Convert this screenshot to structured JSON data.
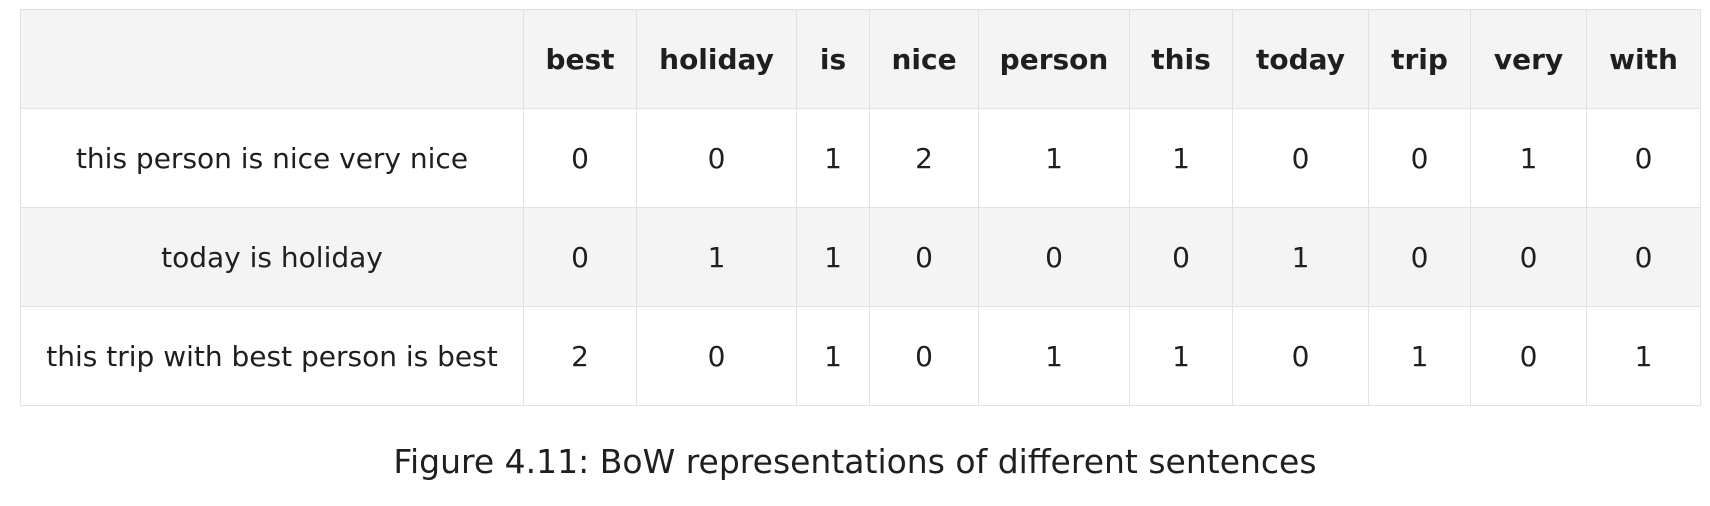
{
  "table": {
    "corner_label": "",
    "columns": [
      "best",
      "holiday",
      "is",
      "nice",
      "person",
      "this",
      "today",
      "trip",
      "very",
      "with"
    ],
    "rows": [
      {
        "sentence": "this person is nice very nice",
        "values": [
          "0",
          "0",
          "1",
          "2",
          "1",
          "1",
          "0",
          "0",
          "1",
          "0"
        ]
      },
      {
        "sentence": "today is holiday",
        "values": [
          "0",
          "1",
          "1",
          "0",
          "0",
          "0",
          "1",
          "0",
          "0",
          "0"
        ]
      },
      {
        "sentence": "this trip with best person is best",
        "values": [
          "2",
          "0",
          "1",
          "0",
          "1",
          "1",
          "0",
          "1",
          "0",
          "1"
        ]
      }
    ]
  },
  "caption": "Figure 4.11: BoW representations of different sentences"
}
